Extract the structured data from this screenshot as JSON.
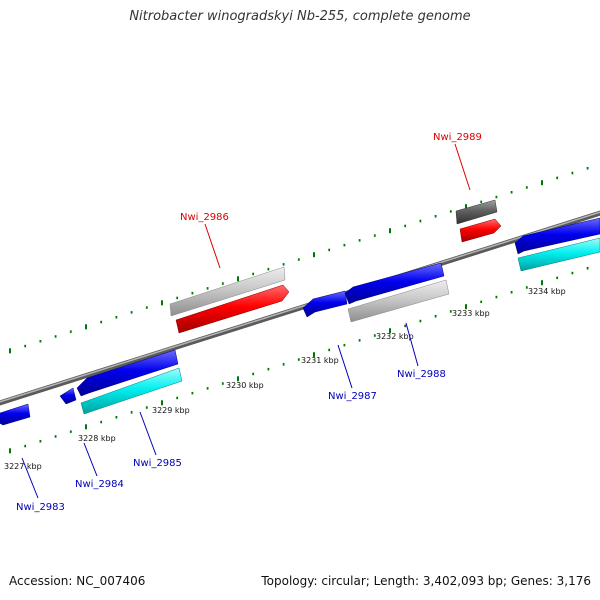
{
  "header": {
    "title": "Nitrobacter winogradskyi Nb-255, complete genome"
  },
  "footer": {
    "accession": "Accession: NC_007406",
    "summary": "Topology: circular; Length: 3,402,093 bp; Genes: 3,176"
  },
  "colors": {
    "backbone": "#8c8c8c",
    "forward_cds": "#ff0000",
    "forward_pseudo": "#c8c8c8",
    "forward_dark": "#555555",
    "reverse_cds": "#0000ee",
    "reverse_alt": "#00f0f0",
    "reverse_gray": "#c8c8c8",
    "label_forward": "#dd0000",
    "label_reverse": "#0000bb",
    "tick": "#007700"
  },
  "ticks": {
    "labels": [
      {
        "text": "3227 kbp"
      },
      {
        "text": "3228 kbp"
      },
      {
        "text": "3229 kbp"
      },
      {
        "text": "3230 kbp"
      },
      {
        "text": "3231 kbp"
      },
      {
        "text": "3232 kbp"
      },
      {
        "text": "3233 kbp"
      },
      {
        "text": "3234 kbp"
      }
    ]
  },
  "genes": [
    {
      "name": "Nwi_2983",
      "strand": "reverse"
    },
    {
      "name": "Nwi_2984",
      "strand": "reverse"
    },
    {
      "name": "Nwi_2985",
      "strand": "reverse"
    },
    {
      "name": "Nwi_2986",
      "strand": "forward"
    },
    {
      "name": "Nwi_2987",
      "strand": "reverse"
    },
    {
      "name": "Nwi_2988",
      "strand": "reverse"
    },
    {
      "name": "Nwi_2989",
      "strand": "forward"
    }
  ]
}
